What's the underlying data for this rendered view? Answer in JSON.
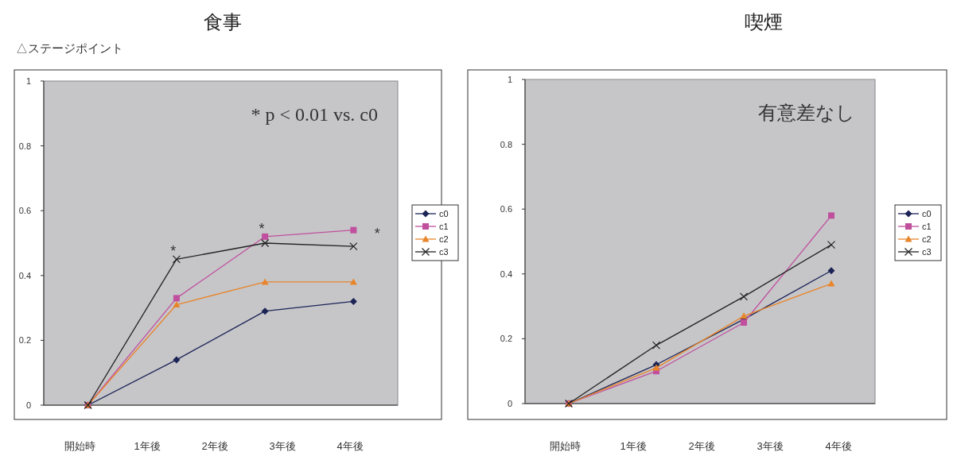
{
  "chart_data": [
    {
      "type": "line",
      "title": "食事",
      "ylabel": "△ステージポイント",
      "categories": [
        null,
        null,
        null,
        null
      ],
      "ylim": [
        0,
        1
      ],
      "yticks": [
        0,
        0.2,
        0.4,
        0.6,
        0.8,
        1
      ],
      "grid": false,
      "legend": "right",
      "line_style": "solid",
      "series": [
        {
          "name": "c0",
          "color": "#1c2456",
          "marker": "diamond",
          "values": [
            0,
            0.14,
            0.29,
            0.32
          ]
        },
        {
          "name": "c1",
          "color": "#c0509e",
          "marker": "square",
          "values": [
            0,
            0.33,
            0.52,
            0.54
          ]
        },
        {
          "name": "c2",
          "color": "#e8852a",
          "marker": "triangle",
          "values": [
            0,
            0.31,
            0.38,
            0.38
          ]
        },
        {
          "name": "c3",
          "color": "#222222",
          "marker": "cross",
          "values": [
            0,
            0.45,
            0.5,
            0.49
          ]
        }
      ],
      "annotations": [
        "* p < 0.01 vs. c0",
        "開始時",
        "1年後",
        "2年後",
        "3年後",
        "4年後",
        "*",
        "*",
        "*"
      ]
    },
    {
      "type": "line",
      "title": "喫煙",
      "categories": [
        null,
        null,
        null,
        null
      ],
      "ylim": [
        0,
        1
      ],
      "yticks": [
        0,
        0.2,
        0.4,
        0.6,
        0.8,
        1
      ],
      "grid": false,
      "legend": "right",
      "line_style": "solid",
      "series": [
        {
          "name": "c0",
          "color": "#1c2456",
          "marker": "diamond",
          "values": [
            0,
            0.12,
            0.26,
            0.41
          ]
        },
        {
          "name": "c1",
          "color": "#c0509e",
          "marker": "square",
          "values": [
            0,
            0.1,
            0.25,
            0.58
          ]
        },
        {
          "name": "c2",
          "color": "#e8852a",
          "marker": "triangle",
          "values": [
            0,
            0.11,
            0.27,
            0.37
          ]
        },
        {
          "name": "c3",
          "color": "#222222",
          "marker": "cross",
          "values": [
            0,
            0.18,
            0.33,
            0.49
          ]
        }
      ],
      "annotations": [
        "有意差なし",
        "開始時",
        "1年後",
        "2年後",
        "3年後",
        "4年後"
      ]
    }
  ]
}
